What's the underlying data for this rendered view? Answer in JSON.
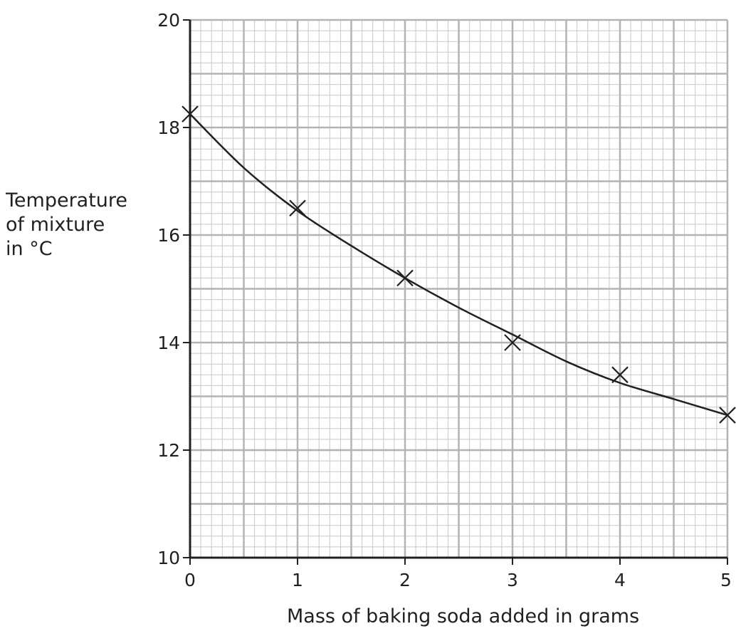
{
  "chart_data": {
    "type": "scatter",
    "title": "",
    "xlabel": "Mass of baking soda added in grams",
    "ylabel_lines": [
      "Temperature",
      "of mixture",
      "in °C"
    ],
    "xlim": [
      0,
      5
    ],
    "ylim": [
      10,
      20
    ],
    "xticks": [
      "0",
      "1",
      "2",
      "3",
      "4",
      "5"
    ],
    "yticks": [
      "10",
      "12",
      "14",
      "16",
      "18",
      "20"
    ],
    "grid": true,
    "marker": "cross",
    "series": [
      {
        "x": [
          0,
          1,
          2,
          3,
          4,
          5
        ],
        "y": [
          18.25,
          16.5,
          15.2,
          14.0,
          13.4,
          12.65
        ]
      }
    ],
    "curve": {
      "type": "best-fit-curve",
      "x": [
        0,
        0.5,
        1,
        1.5,
        2,
        2.5,
        3,
        3.5,
        4,
        4.5,
        5
      ],
      "y": [
        18.25,
        17.25,
        16.45,
        15.8,
        15.2,
        14.65,
        14.15,
        13.65,
        13.25,
        12.95,
        12.65
      ]
    },
    "colors": {
      "major_grid": "#b3b3b3",
      "minor_grid": "#c8c8c8",
      "ink": "#231f20"
    }
  }
}
